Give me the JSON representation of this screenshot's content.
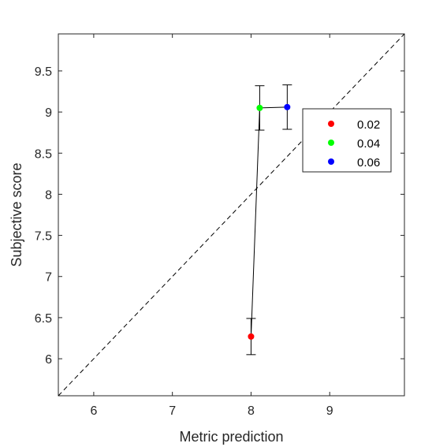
{
  "chart_data": {
    "type": "scatter",
    "title": "",
    "xlabel": "Metric prediction",
    "ylabel": "Subjective score",
    "xlim": [
      5.55,
      9.95
    ],
    "ylim": [
      5.55,
      9.95
    ],
    "x_ticks": [
      6,
      7,
      8,
      9
    ],
    "y_ticks": [
      6,
      6.5,
      7,
      7.5,
      8,
      8.5,
      9,
      9.5
    ],
    "x_tick_labels": [
      "6",
      "7",
      "8",
      "9"
    ],
    "y_tick_labels": [
      "6",
      "6.5",
      "7",
      "7.5",
      "8",
      "8.5",
      "9",
      "9.5"
    ],
    "grid": false,
    "reference_line": "y = x",
    "connect_points": true,
    "legend_placement": "right",
    "series": [
      {
        "name": "0.02",
        "color": "#ff0000",
        "x": 8.0,
        "y": 6.27,
        "err_low": 6.05,
        "err_high": 6.49
      },
      {
        "name": "0.04",
        "color": "#00ff00",
        "x": 8.11,
        "y": 9.05,
        "err_low": 8.78,
        "err_high": 9.32
      },
      {
        "name": "0.06",
        "color": "#0000ff",
        "x": 8.46,
        "y": 9.06,
        "err_low": 8.79,
        "err_high": 9.33
      }
    ]
  }
}
